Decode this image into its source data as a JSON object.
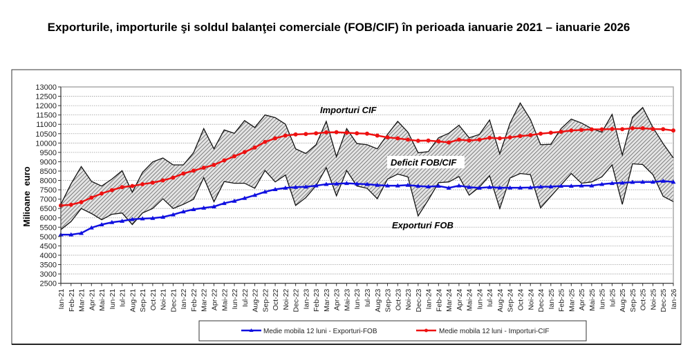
{
  "chart_data": {
    "type": "area",
    "title": "Exporturile, importurile şi soldul balanţei comerciale (FOB/CIF) în perioada ianuarie 2021 – ianuarie 2026",
    "ylabel": "Milioane  euro",
    "xlabel": "",
    "ylim": [
      2500,
      13000
    ],
    "ytick_step": 500,
    "grid": true,
    "categories": [
      "Ian-21",
      "Feb-21",
      "Mar-21",
      "Apr-21",
      "Mai-21",
      "Iun-21",
      "Iul-21",
      "Aug-21",
      "Sep-21",
      "Oct-21",
      "Noi-21",
      "Dec-21",
      "Ian-22",
      "Feb-22",
      "Mar-22",
      "Apr-22",
      "Mai-22",
      "Iun-22",
      "Iul-22",
      "Aug-22",
      "Sep-22",
      "Oct-22",
      "Noi-22",
      "Dec-22",
      "Ian-23",
      "Feb-23",
      "Mar-23",
      "Apr-23",
      "Mai-23",
      "Iun-23",
      "Iul-23",
      "Aug-23",
      "Sep-23",
      "Oct-23",
      "Noi-23",
      "Dec-23",
      "Ian-24",
      "Feb-24",
      "Mar-24",
      "Apr-24",
      "Mai-24",
      "Iun-24",
      "Iul-24",
      "Aug-24",
      "Sep-24",
      "Oct-24",
      "Noi-24",
      "Dec-24",
      "Ian-25",
      "Feb-25",
      "Mar-25",
      "Apr-25",
      "Mai-25",
      "Iun-25",
      "Iul-25",
      "Aug-25",
      "Sep-25",
      "Oct-25",
      "Noi-25",
      "Dec-25",
      "Ian-26"
    ],
    "area_series": {
      "imports": {
        "label": "Importuri CIF",
        "values": [
          6720,
          7820,
          8740,
          7950,
          7700,
          8070,
          8520,
          7370,
          8430,
          8990,
          9200,
          8830,
          8830,
          9480,
          10770,
          9690,
          10700,
          10520,
          11200,
          10830,
          11500,
          11360,
          11010,
          9690,
          9440,
          9910,
          11160,
          9270,
          10770,
          9970,
          9910,
          9690,
          10460,
          11160,
          10580,
          9480,
          9540,
          10280,
          10520,
          10950,
          10280,
          10460,
          11230,
          9420,
          11060,
          12140,
          11260,
          9910,
          9930,
          10770,
          11280,
          11070,
          10770,
          10580,
          11530,
          9360,
          11380,
          11900,
          10830,
          9970,
          9200
        ]
      },
      "exports": {
        "label": "Exporturi FOB",
        "values": [
          5370,
          5800,
          6500,
          6230,
          5900,
          6190,
          6260,
          5640,
          6260,
          6500,
          7020,
          6500,
          6720,
          6990,
          8150,
          6860,
          7940,
          7850,
          7850,
          7580,
          8530,
          7920,
          8290,
          6660,
          7080,
          7720,
          8680,
          7180,
          8530,
          7700,
          7580,
          7020,
          8070,
          8340,
          8190,
          6100,
          6960,
          7880,
          7920,
          8210,
          7210,
          7640,
          8250,
          6500,
          8130,
          8370,
          8310,
          6530,
          7150,
          7760,
          8370,
          7850,
          7920,
          8190,
          8830,
          6720,
          8890,
          8850,
          8310,
          7150,
          6870
        ]
      },
      "gap_label": "Deficit FOB/CIF",
      "fill": "hatched gray"
    },
    "series": [
      {
        "name": "Medie mobila 12 luni - Exporturi-FOB",
        "color": "#1010e0",
        "marker": "triangle",
        "values": [
          5100,
          5100,
          5180,
          5470,
          5640,
          5760,
          5830,
          5920,
          5960,
          5980,
          6040,
          6170,
          6330,
          6450,
          6530,
          6600,
          6780,
          6900,
          7050,
          7210,
          7390,
          7520,
          7600,
          7640,
          7660,
          7720,
          7800,
          7820,
          7850,
          7820,
          7800,
          7750,
          7720,
          7720,
          7750,
          7700,
          7670,
          7700,
          7600,
          7720,
          7640,
          7600,
          7640,
          7610,
          7610,
          7610,
          7620,
          7660,
          7670,
          7700,
          7700,
          7720,
          7720,
          7800,
          7850,
          7870,
          7910,
          7920,
          7920,
          7970,
          7920
        ]
      },
      {
        "name": "Medie mobila 12 luni - Importuri-CIF",
        "color": "#ee1111",
        "marker": "circle",
        "values": [
          6660,
          6700,
          6840,
          7080,
          7300,
          7480,
          7640,
          7700,
          7800,
          7880,
          8000,
          8150,
          8370,
          8520,
          8680,
          8830,
          9070,
          9290,
          9520,
          9760,
          10060,
          10250,
          10400,
          10460,
          10480,
          10520,
          10570,
          10580,
          10550,
          10520,
          10500,
          10400,
          10300,
          10250,
          10180,
          10120,
          10130,
          10090,
          10030,
          10180,
          10130,
          10180,
          10280,
          10250,
          10300,
          10370,
          10420,
          10500,
          10550,
          10600,
          10670,
          10700,
          10730,
          10730,
          10750,
          10740,
          10790,
          10790,
          10750,
          10740,
          10670
        ]
      }
    ],
    "legend_placement": "bottom"
  }
}
